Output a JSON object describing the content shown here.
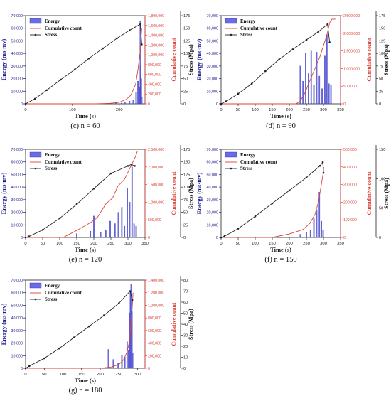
{
  "legend": {
    "energy": "Energy",
    "cumulative": "Cumulative count",
    "stress": "Stress"
  },
  "colors": {
    "energy_fill": "#6b6be6",
    "energy_dark": "#2a2aa8",
    "axis_energy": "#1a1a8a",
    "cumulative": "#d9443a",
    "stress": "#222222"
  },
  "chart_data": [
    {
      "id": "c",
      "type": "bar+line",
      "caption": "(c) n = 60",
      "xlabel": "Time (s)",
      "ylabel_left": "Energy (ms·mv)",
      "ylabel_mid": "Cumulative count",
      "ylabel_right": "Stress (Mpa)",
      "xlim": [
        0,
        255
      ],
      "xticks": [
        0,
        100,
        200
      ],
      "energy_ylim": [
        0,
        70000
      ],
      "energy_yticks": [
        0,
        10000,
        20000,
        30000,
        40000,
        50000,
        60000,
        70000
      ],
      "energy_ytick_labels": [
        "0",
        "10,000",
        "20,000",
        "30,000",
        "40,000",
        "50,000",
        "60,000",
        "70,000"
      ],
      "cum_ylim": [
        0,
        1800000
      ],
      "cum_yticks": [
        0,
        200000,
        400000,
        600000,
        800000,
        1000000,
        1200000,
        1400000,
        1600000,
        1800000
      ],
      "cum_ytick_labels": [
        "0",
        "200,000",
        "400,000",
        "600,000",
        "800,000",
        "1,000,000",
        "1,200,000",
        "1,400,000",
        "1,600,000",
        "1,800,000"
      ],
      "stress_ylim": [
        0,
        175
      ],
      "stress_yticks": [
        0,
        25,
        50,
        75,
        100,
        125,
        150,
        175
      ],
      "stress_ytick_labels": [
        "0",
        "25",
        "50",
        "75",
        "100",
        "125",
        "150",
        "175"
      ],
      "stress": {
        "x": [
          0,
          20,
          45,
          75,
          105,
          135,
          165,
          195,
          222,
          245,
          248
        ],
        "y": [
          0,
          10,
          27,
          48,
          68,
          90,
          110,
          130,
          146,
          158,
          118
        ]
      },
      "cumulative": {
        "x": [
          0,
          150,
          180,
          200,
          215,
          225,
          235,
          240,
          245,
          248
        ],
        "y": [
          0,
          0,
          10000,
          30000,
          90000,
          180000,
          400000,
          700000,
          1100000,
          1550000
        ]
      },
      "energy": {
        "x": [
          193,
          205,
          212,
          222,
          230,
          236,
          240,
          243,
          245,
          246,
          247,
          248
        ],
        "y": [
          800,
          600,
          1200,
          2200,
          3000,
          9000,
          18000,
          13000,
          66000,
          30000,
          20000,
          5000
        ]
      }
    },
    {
      "id": "d",
      "type": "bar+line",
      "caption": "(d) n = 90",
      "xlabel": "Time (s)",
      "ylabel_left": "Energy (ms·mv)",
      "ylabel_mid": "Cumulative count",
      "ylabel_right": "Stress (Mpa)",
      "xlim": [
        0,
        350
      ],
      "xticks": [
        0,
        50,
        100,
        150,
        200,
        250,
        300,
        350
      ],
      "energy_ylim": [
        0,
        70000
      ],
      "energy_yticks": [
        0,
        10000,
        20000,
        30000,
        40000,
        50000,
        60000,
        70000
      ],
      "energy_ytick_labels": [
        "0",
        "10,000",
        "20,000",
        "30,000",
        "40,000",
        "50,000",
        "60,000",
        "70,000"
      ],
      "cum_ylim": [
        0,
        2500000
      ],
      "cum_yticks": [
        0,
        500000,
        1000000,
        1500000,
        2000000,
        2500000
      ],
      "cum_ytick_labels": [
        "0",
        "500,000",
        "1,000,000",
        "1,500,000",
        "2,000,000",
        "2,500,000"
      ],
      "stress_ylim": [
        0,
        175
      ],
      "stress_yticks": [
        0,
        25,
        50,
        75,
        100,
        125,
        150,
        175
      ],
      "stress_ytick_labels": [
        "0",
        "25",
        "50",
        "75",
        "100",
        "125",
        "150",
        "175"
      ],
      "stress": {
        "x": [
          0,
          15,
          50,
          90,
          130,
          170,
          210,
          250,
          285,
          312,
          318
        ],
        "y": [
          0,
          5,
          20,
          40,
          65,
          88,
          108,
          127,
          143,
          158,
          122
        ]
      },
      "cumulative": {
        "x": [
          0,
          220,
          232,
          245,
          260,
          275,
          290,
          300,
          310,
          318,
          325,
          335
        ],
        "y": [
          0,
          0,
          80000,
          300000,
          650000,
          1000000,
          1350000,
          1650000,
          1950000,
          2300000,
          2400000,
          2400000
        ]
      },
      "energy": {
        "x": [
          232,
          240,
          248,
          256,
          264,
          272,
          280,
          288,
          296,
          304,
          310,
          316,
          322
        ],
        "y": [
          30000,
          18000,
          40000,
          24000,
          42000,
          15000,
          41000,
          22000,
          12000,
          38000,
          55000,
          16000,
          15000
        ]
      }
    },
    {
      "id": "e",
      "type": "bar+line",
      "caption": "(e) n = 120",
      "xlabel": "Time (s)",
      "ylabel_left": "Energy (ms·mv)",
      "ylabel_mid": "Cumulative count",
      "ylabel_right": "Stress (Mpa)",
      "xlim": [
        0,
        350
      ],
      "xticks": [
        0,
        50,
        100,
        150,
        200,
        250,
        300,
        350
      ],
      "energy_ylim": [
        0,
        70000
      ],
      "energy_yticks": [
        0,
        10000,
        20000,
        30000,
        40000,
        50000,
        60000,
        70000
      ],
      "energy_ytick_labels": [
        "0",
        "10,000",
        "20,000",
        "30,000",
        "40,000",
        "50,000",
        "60,000",
        "70,000"
      ],
      "cum_ylim": [
        0,
        2500000
      ],
      "cum_yticks": [
        0,
        500000,
        1000000,
        1500000,
        2000000,
        2500000
      ],
      "cum_ytick_labels": [
        "0",
        "500,000",
        "1,000,000",
        "1,500,000",
        "2,000,000",
        "2,500,000"
      ],
      "stress_ylim": [
        0,
        175
      ],
      "stress_yticks": [
        0,
        25,
        50,
        75,
        100,
        125,
        150,
        175
      ],
      "stress_ytick_labels": [
        "0",
        "25",
        "50",
        "75",
        "100",
        "125",
        "150",
        "175"
      ],
      "stress": {
        "x": [
          0,
          10,
          50,
          100,
          150,
          200,
          250,
          300,
          310,
          320
        ],
        "y": [
          0,
          2,
          15,
          38,
          66,
          97,
          127,
          142,
          145,
          142
        ]
      },
      "cumulative": {
        "x": [
          0,
          110,
          150,
          190,
          210,
          235,
          255,
          270,
          290,
          300,
          310,
          320,
          328
        ],
        "y": [
          0,
          0,
          200000,
          420000,
          560000,
          950000,
          1120000,
          1450000,
          1650000,
          1850000,
          2050000,
          2250000,
          2450000
        ]
      },
      "energy": {
        "x": [
          150,
          190,
          200,
          220,
          235,
          248,
          262,
          272,
          282,
          290,
          298,
          305,
          312,
          318,
          324
        ],
        "y": [
          3000,
          5000,
          17000,
          4000,
          6000,
          13000,
          11000,
          20000,
          24000,
          9000,
          39000,
          28000,
          56000,
          11000,
          9000
        ]
      }
    },
    {
      "id": "f",
      "type": "bar+line",
      "caption": "(f) n = 150",
      "xlabel": "Time (s)",
      "ylabel_left": "Energy (ms·mv)",
      "ylabel_mid": "Cumulative count",
      "ylabel_right": "Stress (Mpa)",
      "xlim": [
        0,
        350
      ],
      "xticks": [
        0,
        50,
        100,
        150,
        200,
        250,
        300,
        350
      ],
      "energy_ylim": [
        0,
        70000
      ],
      "energy_yticks": [
        0,
        10000,
        20000,
        30000,
        40000,
        50000,
        60000,
        70000
      ],
      "energy_ytick_labels": [
        "0",
        "10,000",
        "20,000",
        "30,000",
        "40,000",
        "50,000",
        "60,000",
        "70,000"
      ],
      "cum_ylim": [
        0,
        500000
      ],
      "cum_yticks": [
        0,
        100000,
        200000,
        300000,
        400000,
        500000
      ],
      "cum_ytick_labels": [
        "0",
        "100,000",
        "200,000",
        "300,000",
        "400,000",
        "500,000"
      ],
      "stress_ylim": [
        0,
        150
      ],
      "stress_yticks": [
        0,
        50,
        100,
        150
      ],
      "stress_ytick_labels": [
        "0",
        "50",
        "100",
        "150"
      ],
      "stress": {
        "x": [
          0,
          10,
          50,
          100,
          150,
          200,
          250,
          290,
          298,
          300
        ],
        "y": [
          0,
          2,
          15,
          36,
          58,
          80,
          102,
          122,
          128,
          110
        ]
      },
      "cumulative": {
        "x": [
          0,
          150,
          200,
          240,
          260,
          275,
          285,
          292,
          298,
          301
        ],
        "y": [
          0,
          0,
          20000,
          45000,
          80000,
          130000,
          200000,
          280000,
          350000,
          400000
        ]
      },
      "energy": {
        "x": [
          232,
          250,
          262,
          272,
          280,
          288,
          294,
          299
        ],
        "y": [
          2500,
          4000,
          6000,
          15000,
          22000,
          36000,
          13000,
          6000
        ]
      }
    },
    {
      "id": "g",
      "type": "bar+line",
      "caption": "(g) n = 180",
      "xlabel": "Time (s)",
      "ylabel_left": "Energy (ms·mv)",
      "ylabel_mid": "Cumulative count",
      "ylabel_right": "Stress (Mpa)",
      "xlim": [
        0,
        320
      ],
      "xticks": [
        0,
        50,
        100,
        150,
        200,
        250,
        300
      ],
      "energy_ylim": [
        0,
        70000
      ],
      "energy_yticks": [
        0,
        10000,
        20000,
        30000,
        40000,
        50000,
        60000,
        70000
      ],
      "energy_ytick_labels": [
        "0",
        "10,000",
        "20,000",
        "30,000",
        "40,000",
        "50,000",
        "60,000",
        "70,000"
      ],
      "cum_ylim": [
        0,
        1400000
      ],
      "cum_yticks": [
        0,
        200000,
        400000,
        600000,
        800000,
        1000000,
        1200000,
        1400000
      ],
      "cum_ytick_labels": [
        "0",
        "200,000",
        "400,000",
        "600,000",
        "800,000",
        "1,000,000",
        "1,200,000",
        "1,400,000"
      ],
      "stress_ylim": [
        0,
        80
      ],
      "stress_yticks": [
        0,
        10,
        20,
        30,
        40,
        50,
        60,
        70,
        80
      ],
      "stress_ytick_labels": [
        "0",
        "10",
        "20",
        "30",
        "40",
        "50",
        "60",
        "70",
        "80"
      ],
      "stress": {
        "x": [
          0,
          10,
          50,
          90,
          130,
          170,
          210,
          250,
          280,
          286
        ],
        "y": [
          0,
          2,
          9,
          18,
          28,
          38,
          48,
          59,
          70,
          62
        ]
      },
      "cumulative": {
        "x": [
          0,
          200,
          230,
          250,
          262,
          272,
          278,
          282,
          285,
          288
        ],
        "y": [
          0,
          0,
          20000,
          60000,
          130000,
          260000,
          420000,
          650000,
          900000,
          1200000
        ]
      },
      "energy": {
        "x": [
          222,
          235,
          248,
          258,
          266,
          272,
          276,
          279,
          281,
          283,
          285,
          287
        ],
        "y": [
          15000,
          7000,
          4000,
          10000,
          9000,
          21000,
          14000,
          44000,
          61000,
          67000,
          45000,
          12000
        ]
      }
    }
  ]
}
